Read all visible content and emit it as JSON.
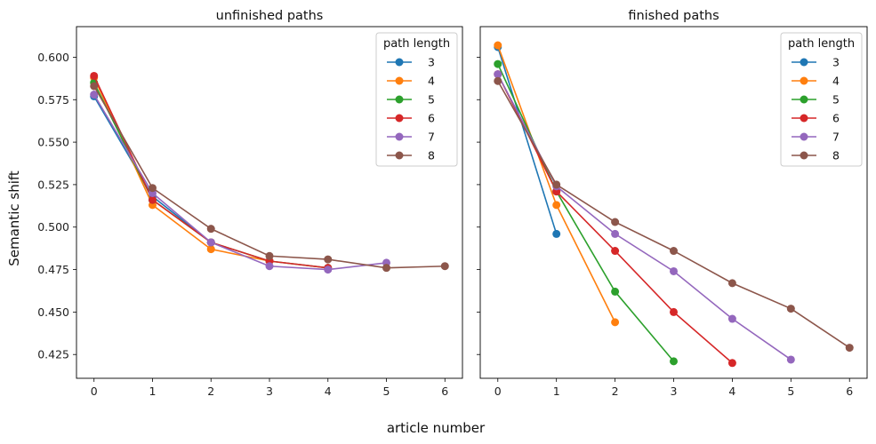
{
  "figure": {
    "xlabel": "article number",
    "ylabel": "Semantic shift",
    "colors": [
      "#1f77b4",
      "#ff7f0e",
      "#2ca02c",
      "#d62728",
      "#9467bd",
      "#8c564b"
    ]
  },
  "chart_data": [
    {
      "type": "line",
      "title": "unfinished paths",
      "xlabel": "article number",
      "ylabel": "Semantic shift",
      "xlim": [
        -0.3,
        6.3
      ],
      "ylim": [
        0.411,
        0.618
      ],
      "x_ticks": [
        0,
        1,
        2,
        3,
        4,
        5,
        6
      ],
      "y_ticks": [
        0.425,
        0.45,
        0.475,
        0.5,
        0.525,
        0.55,
        0.575,
        0.6
      ],
      "y_tick_labels": [
        "0.425",
        "0.450",
        "0.475",
        "0.500",
        "0.525",
        "0.550",
        "0.575",
        "0.600"
      ],
      "grid": false,
      "legend": {
        "title": "path length",
        "position": "top-right"
      },
      "series": [
        {
          "name": "3",
          "color": "#1f77b4",
          "x": [
            0,
            1,
            2
          ],
          "y": [
            0.577,
            0.518,
            0.491
          ]
        },
        {
          "name": "4",
          "color": "#ff7f0e",
          "x": [
            0,
            1,
            2,
            3
          ],
          "y": [
            0.588,
            0.513,
            0.487,
            0.48
          ]
        },
        {
          "name": "5",
          "color": "#2ca02c",
          "x": [
            0,
            1,
            2,
            3,
            4
          ],
          "y": [
            0.585,
            0.516,
            0.491,
            0.48,
            0.476
          ]
        },
        {
          "name": "6",
          "color": "#d62728",
          "x": [
            0,
            1,
            2,
            3,
            4
          ],
          "y": [
            0.589,
            0.516,
            0.491,
            0.48,
            0.476
          ]
        },
        {
          "name": "7",
          "color": "#9467bd",
          "x": [
            0,
            1,
            2,
            3,
            4,
            5
          ],
          "y": [
            0.578,
            0.52,
            0.491,
            0.477,
            0.475,
            0.479
          ]
        },
        {
          "name": "8",
          "color": "#8c564b",
          "x": [
            0,
            1,
            2,
            3,
            4,
            5,
            6
          ],
          "y": [
            0.583,
            0.523,
            0.499,
            0.483,
            0.481,
            0.476,
            0.477
          ]
        }
      ]
    },
    {
      "type": "line",
      "title": "finished paths",
      "xlabel": "article number",
      "ylabel": "Semantic shift",
      "xlim": [
        -0.3,
        6.3
      ],
      "ylim": [
        0.411,
        0.618
      ],
      "x_ticks": [
        0,
        1,
        2,
        3,
        4,
        5,
        6
      ],
      "grid": false,
      "legend": {
        "title": "path length",
        "position": "top-right"
      },
      "series": [
        {
          "name": "3",
          "color": "#1f77b4",
          "x": [
            0,
            1
          ],
          "y": [
            0.606,
            0.496
          ]
        },
        {
          "name": "4",
          "color": "#ff7f0e",
          "x": [
            0,
            1,
            2
          ],
          "y": [
            0.607,
            0.513,
            0.444
          ]
        },
        {
          "name": "5",
          "color": "#2ca02c",
          "x": [
            0,
            1,
            2,
            3
          ],
          "y": [
            0.596,
            0.521,
            0.462,
            0.421
          ]
        },
        {
          "name": "6",
          "color": "#d62728",
          "x": [
            0,
            1,
            2,
            3,
            4
          ],
          "y": [
            0.59,
            0.521,
            0.486,
            0.45,
            0.42
          ]
        },
        {
          "name": "7",
          "color": "#9467bd",
          "x": [
            0,
            1,
            2,
            3,
            4,
            5
          ],
          "y": [
            0.59,
            0.524,
            0.496,
            0.474,
            0.446,
            0.422
          ]
        },
        {
          "name": "8",
          "color": "#8c564b",
          "x": [
            0,
            1,
            2,
            3,
            4,
            5,
            6
          ],
          "y": [
            0.586,
            0.525,
            0.503,
            0.486,
            0.467,
            0.452,
            0.429
          ]
        }
      ]
    }
  ]
}
